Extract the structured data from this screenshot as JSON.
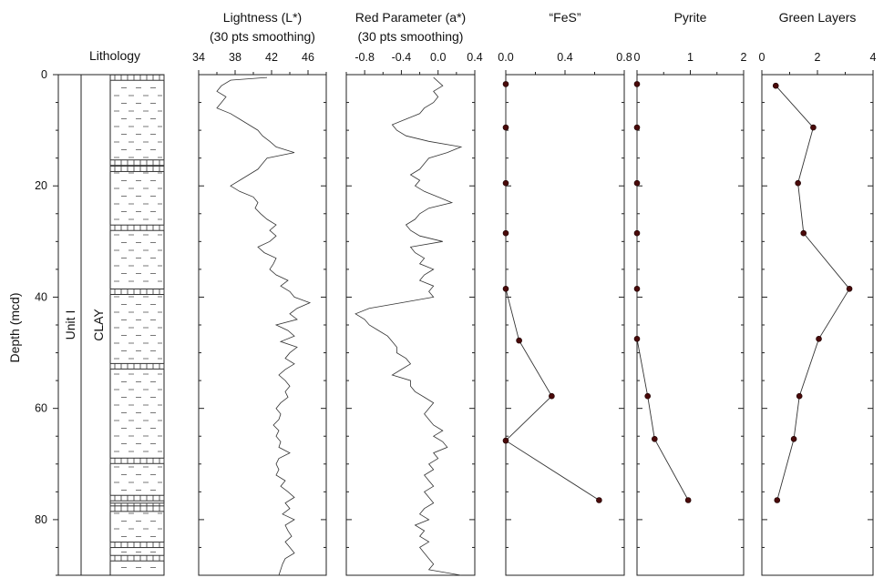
{
  "depth_axis": {
    "label": "Depth (mcd)",
    "ticks": [
      0,
      20,
      40,
      60,
      80
    ],
    "range": [
      0,
      90
    ]
  },
  "lithology": {
    "title": "Lithology",
    "unit_label": "Unit I",
    "rock_label": "CLAY",
    "interbed_depths": [
      0.2,
      15.5,
      16.6,
      27.2,
      38.7,
      52.1,
      69.1,
      75.8,
      77.2,
      77.7,
      84.2,
      86.6
    ]
  },
  "chart_data": [
    {
      "type": "line",
      "title": "Lightness (L*)",
      "subtitle": "(30 pts smoothing)",
      "xlim": [
        34,
        48
      ],
      "x_ticks": [
        34,
        38,
        42,
        46
      ],
      "ylim": [
        90,
        0
      ],
      "series": [
        {
          "depth": [
            0.5,
            1,
            2,
            3,
            4,
            5,
            6,
            7,
            8,
            9,
            10,
            11,
            12,
            13,
            14,
            15,
            16,
            17,
            18,
            19,
            20,
            21,
            22,
            23,
            24,
            25,
            26,
            27,
            28,
            29,
            30,
            31,
            32,
            33,
            34,
            35,
            36,
            37,
            38,
            39,
            40,
            41,
            42,
            43,
            44,
            45,
            46,
            47,
            48,
            49,
            50,
            51,
            52,
            53,
            54,
            55,
            56,
            57,
            58,
            59,
            60,
            61,
            62,
            63,
            64,
            65,
            66,
            67,
            68,
            69,
            70,
            71,
            72,
            73,
            74,
            75,
            76,
            77,
            78,
            79,
            80,
            81,
            82,
            83,
            84,
            85,
            86,
            87,
            88,
            89,
            90
          ],
          "values": [
            41.5,
            37.5,
            36.5,
            36.0,
            37.0,
            36.5,
            36.0,
            37.5,
            38.5,
            39.5,
            40.5,
            41.0,
            41.8,
            42.5,
            44.5,
            41.5,
            41.0,
            40.5,
            39.5,
            38.5,
            37.5,
            38.5,
            40.0,
            40.5,
            40.2,
            40.8,
            41.5,
            42.5,
            41.8,
            42.5,
            41.8,
            40.5,
            41.2,
            42.5,
            42.2,
            41.8,
            42.5,
            43.8,
            43.0,
            44.0,
            44.5,
            46.2,
            44.8,
            44.0,
            44.8,
            42.5,
            43.8,
            44.5,
            43.0,
            44.8,
            44.0,
            43.5,
            44.5,
            43.5,
            42.8,
            43.5,
            44.0,
            43.5,
            43.8,
            43.0,
            42.5,
            43.0,
            42.8,
            42.2,
            42.8,
            42.5,
            43.0,
            42.8,
            44.0,
            42.8,
            42.5,
            42.8,
            42.5,
            43.5,
            43.0,
            43.8,
            44.5,
            43.5,
            44.0,
            43.2,
            44.5,
            43.5,
            43.8,
            44.2,
            43.5,
            44.0,
            44.5,
            43.5,
            43.2,
            43.0,
            42.8
          ]
        }
      ]
    },
    {
      "type": "line",
      "title": "Red Parameter (a*)",
      "subtitle": "(30 pts smoothing)",
      "xlim": [
        -1.0,
        0.4
      ],
      "x_ticks": [
        -0.8,
        -0.4,
        0.0,
        0.4
      ],
      "ylim": [
        90,
        0
      ],
      "series": [
        {
          "depth": [
            0.5,
            2,
            3,
            4,
            5,
            6,
            7,
            8,
            9,
            10,
            11,
            12,
            13,
            14,
            15,
            16,
            17,
            18,
            19,
            20,
            21,
            22,
            23,
            24,
            25,
            26,
            27,
            28,
            29,
            30,
            31,
            32,
            33,
            34,
            35,
            36,
            37,
            38,
            39,
            40,
            41,
            42,
            43,
            44,
            45,
            46,
            47,
            48,
            49,
            50,
            51,
            52,
            53,
            54,
            55,
            56,
            57,
            58,
            59,
            60,
            61,
            62,
            63,
            64,
            65,
            66,
            67,
            68,
            69,
            70,
            71,
            72,
            73,
            74,
            75,
            76,
            77,
            78,
            79,
            80,
            81,
            82,
            83,
            84,
            85,
            86,
            87,
            88,
            89,
            90
          ],
          "values": [
            -0.05,
            0.05,
            -0.05,
            0.0,
            -0.05,
            -0.15,
            -0.2,
            -0.35,
            -0.5,
            -0.45,
            -0.35,
            -0.1,
            0.25,
            0.1,
            -0.1,
            -0.15,
            -0.2,
            -0.3,
            -0.2,
            -0.25,
            -0.15,
            0.0,
            0.15,
            -0.1,
            -0.2,
            -0.25,
            -0.35,
            -0.3,
            -0.2,
            0.05,
            -0.3,
            -0.25,
            -0.15,
            -0.2,
            -0.05,
            -0.15,
            -0.2,
            -0.05,
            -0.1,
            -0.05,
            -0.4,
            -0.75,
            -0.9,
            -0.8,
            -0.75,
            -0.65,
            -0.55,
            -0.5,
            -0.45,
            -0.45,
            -0.35,
            -0.3,
            -0.4,
            -0.5,
            -0.3,
            -0.3,
            -0.25,
            -0.15,
            -0.05,
            -0.1,
            -0.15,
            -0.1,
            -0.05,
            0.05,
            -0.05,
            0.05,
            0.1,
            -0.05,
            0.0,
            -0.1,
            -0.05,
            -0.15,
            -0.1,
            -0.05,
            -0.15,
            -0.1,
            -0.05,
            -0.15,
            -0.2,
            -0.1,
            -0.25,
            -0.15,
            -0.2,
            -0.1,
            -0.2,
            -0.15,
            -0.1,
            -0.05,
            -0.1,
            0.25
          ]
        }
      ]
    },
    {
      "type": "line",
      "title": "“FeS”",
      "xlim": [
        0,
        0.8
      ],
      "x_ticks": [
        0.0,
        0.4,
        0.8
      ],
      "ylim": [
        90,
        0
      ],
      "series": [
        {
          "depth": [
            1.7,
            9.5,
            19.5,
            28.5,
            38.5,
            47.8,
            57.8,
            65.8,
            76.5
          ],
          "values": [
            0.0,
            0.0,
            0.0,
            0.0,
            0.0,
            0.09,
            0.31,
            0.0,
            0.63
          ]
        }
      ]
    },
    {
      "type": "line",
      "title": "Pyrite",
      "xlim": [
        0,
        2.0
      ],
      "x_ticks": [
        0.0,
        1.0,
        2.0
      ],
      "ylim": [
        90,
        0
      ],
      "series": [
        {
          "depth": [
            1.7,
            9.5,
            19.5,
            28.5,
            38.5,
            47.5,
            57.8,
            65.5,
            76.5
          ],
          "values": [
            0.0,
            0.0,
            0.0,
            0.0,
            0.0,
            0.0,
            0.2,
            0.33,
            0.96
          ]
        }
      ]
    },
    {
      "type": "line",
      "title": "Green Layers",
      "xlim": [
        0,
        4.0
      ],
      "x_ticks": [
        0.0,
        2.0,
        4.0
      ],
      "ylim": [
        90,
        0
      ],
      "series": [
        {
          "depth": [
            2.0,
            9.5,
            19.5,
            28.5,
            38.5,
            47.5,
            57.8,
            65.5,
            76.5
          ],
          "values": [
            0.5,
            1.85,
            1.3,
            1.5,
            3.15,
            2.05,
            1.35,
            1.15,
            0.55
          ]
        }
      ]
    }
  ],
  "colors": {
    "line": "#333333",
    "marker": "#4a0a0a",
    "axis": "#222222"
  }
}
